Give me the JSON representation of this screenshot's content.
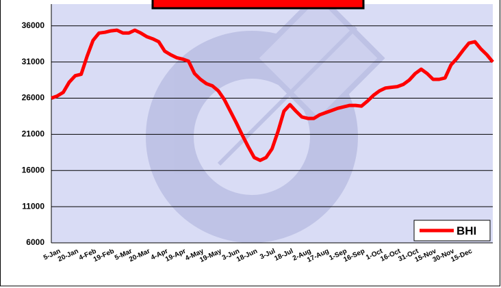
{
  "chart_data": {
    "type": "line",
    "categories": [
      "5-Jan",
      null,
      null,
      "20-Jan",
      null,
      null,
      "4-Feb",
      null,
      null,
      "19-Feb",
      null,
      null,
      "5-Mar",
      null,
      null,
      "20-Mar",
      null,
      null,
      "4-Apr",
      null,
      null,
      "19-Apr",
      null,
      null,
      "4-May",
      null,
      null,
      "19-May",
      null,
      null,
      "3-Jun",
      null,
      null,
      "18-Jun",
      null,
      null,
      "3-Jul",
      null,
      null,
      "18-Jul",
      null,
      null,
      "2-Aug",
      null,
      null,
      "17-Aug",
      null,
      null,
      "1-Sep",
      null,
      null,
      "16-Sep",
      null,
      null,
      "1-Oct",
      null,
      null,
      "16-Oct",
      null,
      null,
      "31-Oct",
      null,
      null,
      "15-Nov",
      null,
      null,
      "30-Nov",
      null,
      null,
      "15-Dec",
      null,
      null,
      null,
      null,
      null
    ],
    "series": [
      {
        "name": "BHI",
        "color": "#ff0000",
        "values": [
          26000,
          26300,
          26800,
          28200,
          29100,
          29300,
          31800,
          34000,
          35000,
          35100,
          35300,
          35400,
          35000,
          35000,
          35400,
          35000,
          34500,
          34200,
          33800,
          32500,
          32000,
          31600,
          31400,
          31100,
          29400,
          28600,
          28000,
          27700,
          27000,
          25800,
          24200,
          22600,
          20900,
          19300,
          17800,
          17400,
          17800,
          19000,
          21400,
          24200,
          25100,
          24200,
          23400,
          23200,
          23200,
          23700,
          24000,
          24300,
          24600,
          24800,
          25000,
          25000,
          24900,
          25600,
          26400,
          27000,
          27400,
          27500,
          27600,
          27900,
          28500,
          29400,
          30000,
          29400,
          28600,
          28600,
          28800,
          30600,
          31500,
          32600,
          33600,
          33800,
          32800,
          32000,
          31000
        ]
      }
    ],
    "ylim": [
      6000,
      39000
    ],
    "yticks": [
      6000,
      11000,
      16000,
      21000,
      26000,
      31000,
      36000
    ],
    "grid": true,
    "legend": "lower right"
  }
}
